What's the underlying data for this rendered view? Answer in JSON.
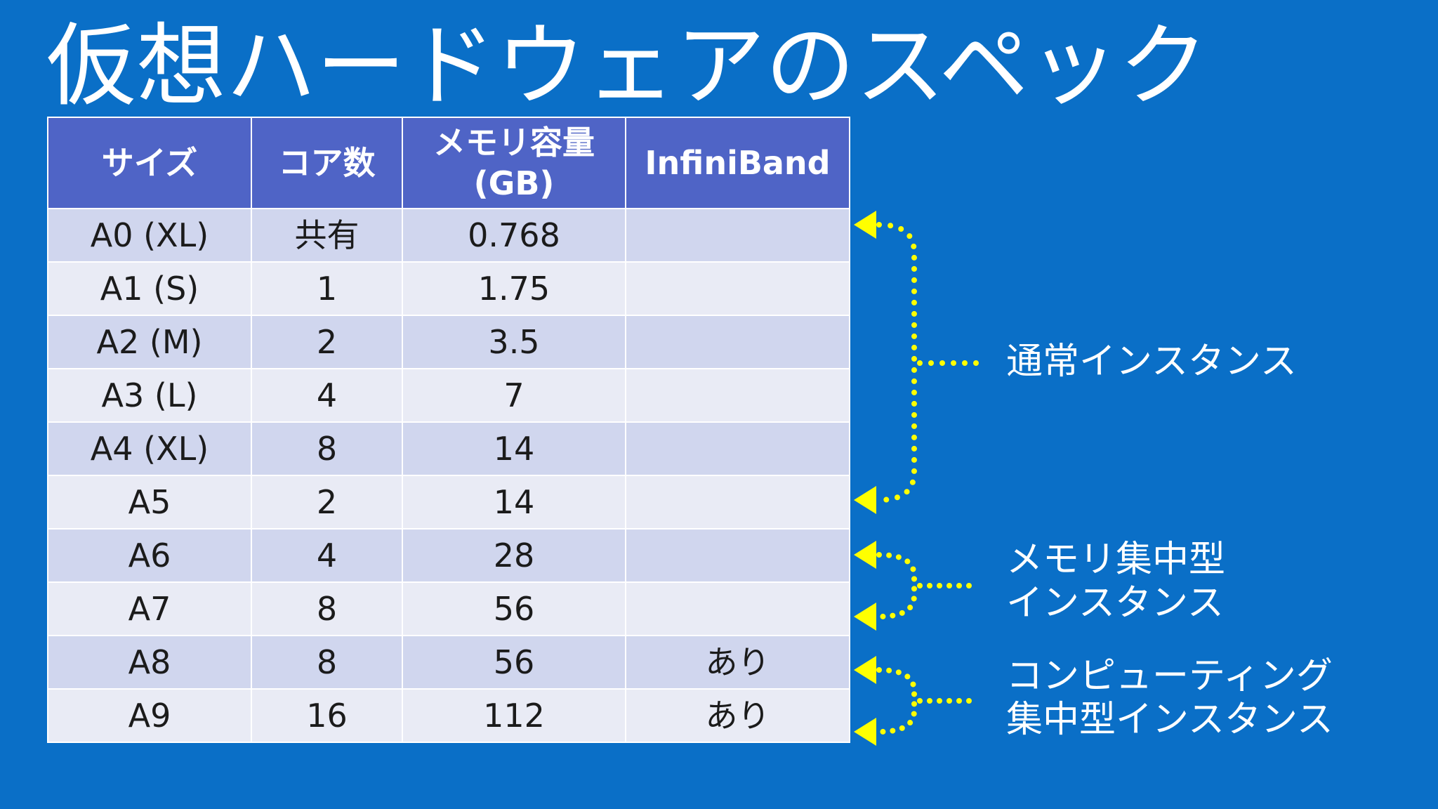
{
  "title": "仮想ハードウェアのスペック",
  "table": {
    "headers": [
      "サイズ",
      "コア数",
      "メモリ容量\n(GB)",
      "InfiniBand"
    ],
    "rows": [
      [
        "A0 (XL)",
        "共有",
        "0.768",
        ""
      ],
      [
        "A1 (S)",
        "1",
        "1.75",
        ""
      ],
      [
        "A2 (M)",
        "2",
        "3.5",
        ""
      ],
      [
        "A3 (L)",
        "4",
        "7",
        ""
      ],
      [
        "A4 (XL)",
        "8",
        "14",
        ""
      ],
      [
        "A5",
        "2",
        "14",
        ""
      ],
      [
        "A6",
        "4",
        "28",
        ""
      ],
      [
        "A7",
        "8",
        "56",
        ""
      ],
      [
        "A8",
        "8",
        "56",
        "あり"
      ],
      [
        "A9",
        "16",
        "112",
        "あり"
      ]
    ]
  },
  "groups": [
    {
      "label": "通常インスタンス"
    },
    {
      "label": "メモリ集中型\nインスタンス"
    },
    {
      "label": "コンピューティング\n集中型インスタンス"
    }
  ],
  "colors": {
    "background": "#0a6fc7",
    "header": "#4f64c6",
    "row_odd": "#d0d6ee",
    "row_even": "#e9ebf5",
    "bracket": "#ffff00"
  }
}
